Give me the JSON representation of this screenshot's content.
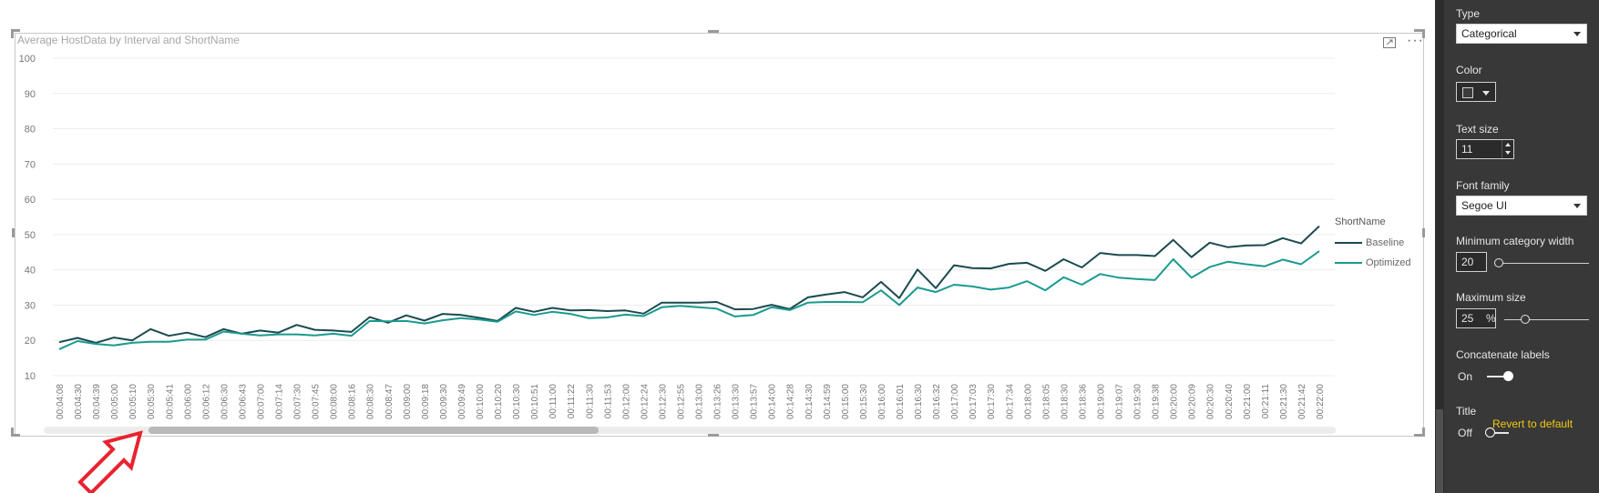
{
  "chart": {
    "title": "Average HostData by Interval and ShortName",
    "more_glyph": "···"
  },
  "legend": {
    "title": "ShortName",
    "items": [
      {
        "label": "Baseline",
        "color": "#1a4a4f"
      },
      {
        "label": "Optimized",
        "color": "#1a9a8f"
      }
    ]
  },
  "chart_data": {
    "type": "line",
    "ylim": [
      10,
      100
    ],
    "yticks": [
      10,
      20,
      30,
      40,
      50,
      60,
      70,
      80,
      90,
      100
    ],
    "grid": true,
    "x": [
      "00:04:08",
      "00:04:30",
      "00:04:39",
      "00:05:00",
      "00:05:10",
      "00:05:30",
      "00:05:41",
      "00:06:00",
      "00:06:12",
      "00:06:30",
      "00:06:43",
      "00:07:00",
      "00:07:14",
      "00:07:30",
      "00:07:45",
      "00:08:00",
      "00:08:16",
      "00:08:30",
      "00:08:47",
      "00:09:00",
      "00:09:18",
      "00:09:30",
      "00:09:49",
      "00:10:00",
      "00:10:20",
      "00:10:30",
      "00:10:51",
      "00:11:00",
      "00:11:22",
      "00:11:30",
      "00:11:53",
      "00:12:00",
      "00:12:24",
      "00:12:30",
      "00:12:55",
      "00:13:00",
      "00:13:26",
      "00:13:30",
      "00:13:57",
      "00:14:00",
      "00:14:28",
      "00:14:30",
      "00:14:59",
      "00:15:00",
      "00:15:30",
      "00:16:00",
      "00:16:01",
      "00:16:30",
      "00:16:32",
      "00:17:00",
      "00:17:03",
      "00:17:30",
      "00:17:34",
      "00:18:00",
      "00:18:05",
      "00:18:30",
      "00:18:36",
      "00:19:00",
      "00:19:07",
      "00:19:30",
      "00:19:38",
      "00:20:00",
      "00:20:09",
      "00:20:30",
      "00:20:40",
      "00:21:00",
      "00:21:11",
      "00:21:30",
      "00:21:42",
      "00:22:00"
    ],
    "series": [
      {
        "name": "Baseline",
        "values": [
          19.5,
          20.7,
          19.3,
          20.8,
          20.0,
          23.2,
          21.3,
          22.2,
          20.9,
          23.2,
          21.9,
          22.8,
          22.2,
          24.4,
          23.0,
          22.8,
          22.4,
          26.6,
          25.0,
          27.1,
          25.6,
          27.5,
          27.2,
          26.4,
          25.5,
          29.2,
          28.1,
          29.2,
          28.5,
          28.6,
          28.3,
          28.5,
          27.6,
          30.7,
          30.7,
          30.7,
          30.9,
          28.8,
          28.9,
          30.1,
          28.9,
          32.2,
          33.0,
          33.7,
          32.2,
          36.6,
          32.0,
          40.1,
          34.8,
          41.3,
          40.5,
          40.4,
          41.7,
          42.0,
          39.7,
          43.0,
          40.7,
          44.8,
          44.2,
          44.2,
          43.9,
          48.5,
          43.6,
          47.7,
          46.4,
          46.9,
          47.0,
          49.0,
          47.5,
          52.4
        ]
      },
      {
        "name": "Optimized",
        "values": [
          17.5,
          19.8,
          19.0,
          18.6,
          19.3,
          19.6,
          19.6,
          20.2,
          20.2,
          22.5,
          21.9,
          21.4,
          21.7,
          21.7,
          21.4,
          21.9,
          21.3,
          25.5,
          25.4,
          25.5,
          24.8,
          25.7,
          26.3,
          25.9,
          25.3,
          28.2,
          27.2,
          28.1,
          27.5,
          26.3,
          26.5,
          27.3,
          26.9,
          29.4,
          29.8,
          29.4,
          29.0,
          26.8,
          27.2,
          29.4,
          28.6,
          30.7,
          30.9,
          30.9,
          30.8,
          34.2,
          30.0,
          35.0,
          33.7,
          35.8,
          35.3,
          34.4,
          35.0,
          36.8,
          34.2,
          37.9,
          35.8,
          38.8,
          37.8,
          37.4,
          37.1,
          43.0,
          37.8,
          40.8,
          42.3,
          41.6,
          41.0,
          42.9,
          41.6,
          45.3
        ]
      }
    ]
  },
  "pane": {
    "type_label": "Type",
    "type_value": "Categorical",
    "color_label": "Color",
    "text_size_label": "Text size",
    "text_size_value": "11",
    "font_family_label": "Font family",
    "font_family_value": "Segoe UI",
    "min_cat_width_label": "Minimum category width",
    "min_cat_width_value": "20",
    "min_cat_width_fraction": 0.0,
    "max_size_label": "Maximum size",
    "max_size_value": "25",
    "max_size_unit": "%",
    "max_size_fraction": 0.25,
    "concat_label": "Concatenate labels",
    "concat_state": "On",
    "title_label": "Title",
    "title_state": "Off",
    "revert_label": "Revert to default",
    "accent": "#f2c811",
    "highlight": "#e8232f"
  }
}
